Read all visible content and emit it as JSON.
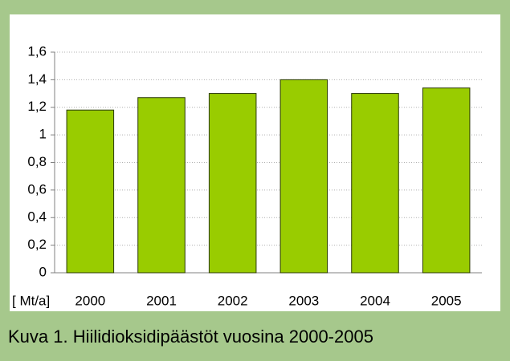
{
  "chart_data": {
    "type": "bar",
    "title": "Kuva 1. Hiilidioksidipäästöt vuosina 2000-2005",
    "y_label": "[ Mt/a]",
    "categories": [
      "2000",
      "2001",
      "2002",
      "2003",
      "2004",
      "2005"
    ],
    "values": [
      1.18,
      1.27,
      1.3,
      1.4,
      1.3,
      1.34
    ],
    "color": "#99cc00",
    "ylim": [
      0,
      1.6
    ],
    "yticks": [
      0,
      {
        "value": 0.2,
        "label": "0,2"
      },
      {
        "value": 0.4,
        "label": "0,4"
      },
      {
        "value": 0.6,
        "label": "0,6"
      },
      {
        "value": 0.8,
        "label": "0,8"
      },
      1,
      {
        "value": 1.2,
        "label": "1,2"
      },
      {
        "value": 1.4,
        "label": "1,4"
      },
      {
        "value": 1.6,
        "label": "1,6"
      }
    ],
    "grid": true
  }
}
